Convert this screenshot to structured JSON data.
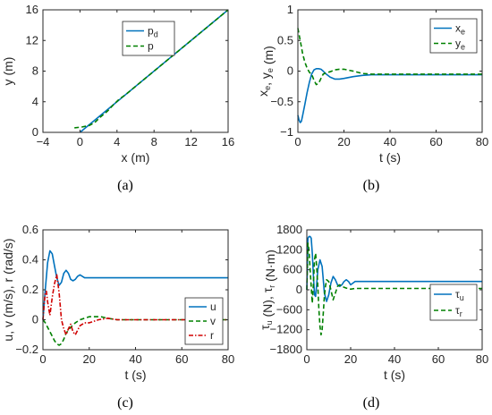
{
  "panels": [
    {
      "label": "(a)"
    },
    {
      "label": "(b)"
    },
    {
      "label": "(c)"
    },
    {
      "label": "(d)"
    }
  ],
  "chart_data": [
    {
      "type": "line",
      "xlabel": "x (m)",
      "ylabel": "y (m)",
      "xlim": [
        -4,
        16
      ],
      "ylim": [
        0,
        16
      ],
      "xticks": [
        -4,
        0,
        4,
        8,
        12,
        16
      ],
      "yticks": [
        0,
        4,
        8,
        12,
        16
      ],
      "legend_location": "top-center",
      "grid": false,
      "series": [
        {
          "name": "p",
          "sub": "d",
          "color": "#0072BD",
          "dash": "solid",
          "x": [
            0,
            16
          ],
          "y": [
            0,
            16
          ]
        },
        {
          "name": "p",
          "sub": "",
          "color": "#008000",
          "dash": "dashed",
          "x": [
            -0.6,
            0.2,
            1.0,
            1.6,
            2.2,
            3.0,
            3.6,
            4.2,
            5.0,
            6.0,
            8.0,
            12.0,
            16.0
          ],
          "y": [
            0.6,
            0.7,
            0.9,
            1.3,
            2.0,
            2.8,
            3.6,
            4.3,
            5.0,
            6.0,
            8.0,
            12.0,
            16.0
          ]
        }
      ]
    },
    {
      "type": "line",
      "xlabel": "t (s)",
      "ylabel_parts": [
        [
          "x",
          "e"
        ],
        [
          ", ",
          ""
        ],
        [
          "y",
          "e"
        ],
        [
          " (m)",
          ""
        ]
      ],
      "xlim": [
        0,
        80
      ],
      "ylim": [
        -1,
        1
      ],
      "xticks": [
        0,
        20,
        40,
        60,
        80
      ],
      "yticks": [
        -1,
        -0.5,
        0,
        0.5,
        1
      ],
      "legend_location": "top-right",
      "grid": false,
      "series": [
        {
          "name": "x",
          "sub": "e",
          "color": "#0072BD",
          "dash": "solid",
          "x": [
            0,
            0.5,
            1,
            1.5,
            2,
            3,
            4,
            5,
            6,
            7,
            8,
            9,
            10,
            11,
            12,
            14,
            16,
            18,
            20,
            24,
            28,
            32,
            40,
            50,
            60,
            70,
            80
          ],
          "y": [
            -0.72,
            -0.8,
            -0.84,
            -0.82,
            -0.74,
            -0.55,
            -0.35,
            -0.18,
            -0.05,
            0.02,
            0.04,
            0.04,
            0.03,
            0.0,
            -0.04,
            -0.1,
            -0.13,
            -0.13,
            -0.12,
            -0.09,
            -0.07,
            -0.06,
            -0.06,
            -0.06,
            -0.06,
            -0.06,
            -0.06
          ]
        },
        {
          "name": "y",
          "sub": "e",
          "color": "#008000",
          "dash": "dashed",
          "x": [
            0,
            0.5,
            1,
            1.5,
            2,
            3,
            4,
            5,
            6,
            7,
            8,
            9,
            10,
            11,
            12,
            14,
            16,
            18,
            20,
            24,
            28,
            32,
            40,
            50,
            60,
            70,
            80
          ],
          "y": [
            0.7,
            0.6,
            0.5,
            0.4,
            0.3,
            0.15,
            0.05,
            -0.02,
            -0.05,
            -0.15,
            -0.22,
            -0.2,
            -0.12,
            -0.05,
            -0.03,
            -0.01,
            0.02,
            0.03,
            0.03,
            0.0,
            -0.04,
            -0.05,
            -0.05,
            -0.05,
            -0.05,
            -0.05,
            -0.05
          ]
        }
      ]
    },
    {
      "type": "line",
      "xlabel": "t (s)",
      "ylabel": "u, v (m/s), r (rad/s)",
      "xlim": [
        0,
        80
      ],
      "ylim": [
        -0.2,
        0.6
      ],
      "xticks": [
        0,
        20,
        40,
        60,
        80
      ],
      "yticks": [
        -0.2,
        0,
        0.2,
        0.4,
        0.6
      ],
      "legend_location": "bottom-right",
      "grid": false,
      "series": [
        {
          "name": "u",
          "sub": "",
          "color": "#0072BD",
          "dash": "solid",
          "x": [
            0,
            1,
            2,
            3,
            4,
            5,
            6,
            7,
            8,
            9,
            10,
            11,
            12,
            13,
            14,
            15,
            16,
            17,
            18,
            20,
            22,
            25,
            30,
            40,
            80
          ],
          "y": [
            0,
            0.2,
            0.38,
            0.46,
            0.44,
            0.36,
            0.28,
            0.23,
            0.25,
            0.31,
            0.33,
            0.31,
            0.27,
            0.26,
            0.27,
            0.29,
            0.3,
            0.29,
            0.28,
            0.28,
            0.28,
            0.28,
            0.28,
            0.28,
            0.28
          ]
        },
        {
          "name": "v",
          "sub": "",
          "color": "#008000",
          "dash": "dashed",
          "x": [
            0,
            1,
            2,
            3,
            4,
            5,
            6,
            7,
            8,
            9,
            10,
            12,
            14,
            16,
            18,
            20,
            22,
            25,
            28,
            32,
            40,
            80
          ],
          "y": [
            0,
            -0.02,
            -0.05,
            -0.08,
            -0.11,
            -0.14,
            -0.16,
            -0.17,
            -0.16,
            -0.13,
            -0.09,
            -0.05,
            -0.02,
            0.0,
            0.01,
            0.02,
            0.02,
            0.02,
            0.01,
            0.0,
            0.0,
            0.0
          ]
        },
        {
          "name": "r",
          "sub": "",
          "color": "#D00000",
          "dash": "dashdot",
          "x": [
            0,
            0.5,
            1,
            1.5,
            2,
            3,
            4,
            5,
            6,
            7,
            8,
            9,
            10,
            11,
            12,
            13,
            14,
            15,
            16,
            18,
            20,
            24,
            28,
            32,
            40,
            80
          ],
          "y": [
            0,
            0.1,
            0.18,
            0.19,
            0.12,
            0.03,
            0.15,
            0.24,
            0.3,
            0.18,
            0.0,
            -0.06,
            -0.1,
            -0.06,
            -0.03,
            -0.08,
            -0.1,
            -0.07,
            -0.04,
            -0.02,
            -0.02,
            0.0,
            0.01,
            0.0,
            0.0,
            0.0
          ]
        }
      ]
    },
    {
      "type": "line",
      "xlabel": "t (s)",
      "ylabel_parts": [
        [
          "τ",
          "u"
        ],
        [
          " (N), ",
          ""
        ],
        [
          "τ",
          "r"
        ],
        [
          " (N·m)",
          ""
        ]
      ],
      "xlim": [
        0,
        80
      ],
      "ylim": [
        -1800,
        1800
      ],
      "xticks": [
        0,
        20,
        40,
        60,
        80
      ],
      "yticks": [
        -1800,
        -1200,
        -600,
        0,
        600,
        1200,
        1800
      ],
      "legend_location": "middle-right",
      "grid": false,
      "series": [
        {
          "name": "τ",
          "sub": "u",
          "color": "#0072BD",
          "dash": "solid",
          "x": [
            0,
            0.5,
            1,
            1.5,
            2,
            2.5,
            3,
            3.5,
            4,
            4.5,
            5,
            6,
            7,
            7.5,
            8,
            9,
            10,
            11,
            12,
            13,
            14,
            15,
            16,
            17,
            18,
            19,
            20,
            21,
            22,
            24,
            28,
            32,
            40,
            80
          ],
          "y": [
            0,
            1550,
            1600,
            1600,
            1550,
            1100,
            400,
            -150,
            -200,
            150,
            600,
            900,
            700,
            300,
            -100,
            -350,
            -150,
            200,
            400,
            300,
            150,
            100,
            150,
            250,
            300,
            250,
            150,
            200,
            250,
            250,
            250,
            250,
            250,
            250
          ]
        },
        {
          "name": "τ",
          "sub": "r",
          "color": "#008000",
          "dash": "dashed",
          "x": [
            0,
            0.5,
            1,
            1.5,
            2,
            2.5,
            3,
            3.5,
            4,
            4.5,
            5,
            5.5,
            6,
            6.5,
            7,
            7.5,
            8,
            8.5,
            9,
            10,
            11,
            12,
            13,
            14,
            15,
            16,
            18,
            20,
            22,
            25,
            30,
            40,
            80
          ],
          "y": [
            0,
            1400,
            1200,
            600,
            100,
            -400,
            200,
            900,
            1100,
            700,
            100,
            -600,
            -1100,
            -1350,
            -1200,
            -700,
            -200,
            100,
            300,
            250,
            0,
            -300,
            -100,
            100,
            150,
            100,
            50,
            20,
            40,
            40,
            40,
            40,
            40
          ]
        }
      ]
    }
  ]
}
